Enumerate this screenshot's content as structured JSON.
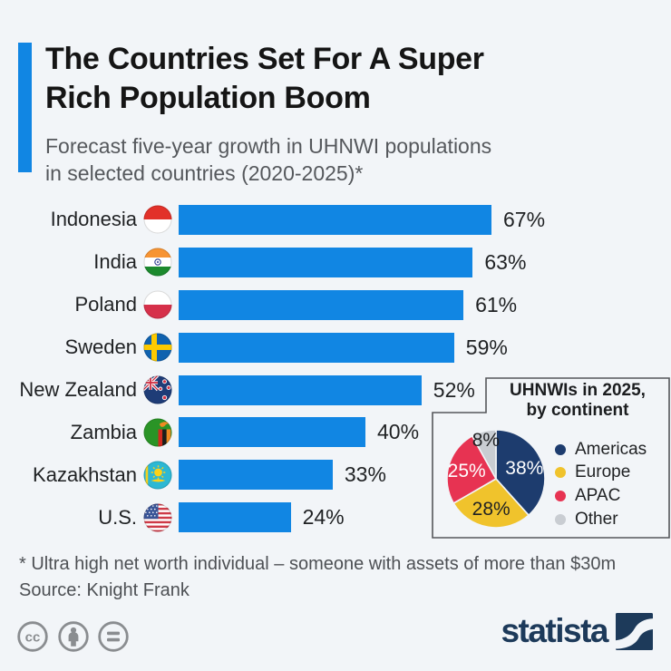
{
  "header": {
    "accent_color": "#1186e3",
    "title_lines": [
      "The Countries Set For A Super",
      "Rich Population Boom"
    ],
    "subtitle_lines": [
      "Forecast five-year growth in UHNWI populations",
      "in selected countries (2020-2025)*"
    ]
  },
  "chart_data": [
    {
      "type": "bar",
      "orientation": "horizontal",
      "title": "Forecast five-year growth in UHNWI populations in selected countries (2020-2025)",
      "categories": [
        "Indonesia",
        "India",
        "Poland",
        "Sweden",
        "New Zealand",
        "Zambia",
        "Kazakhstan",
        "U.S."
      ],
      "values": [
        67,
        63,
        61,
        59,
        52,
        40,
        33,
        24
      ],
      "value_labels": [
        "67%",
        "63%",
        "61%",
        "59%",
        "52%",
        "40%",
        "33%",
        "24%"
      ],
      "unit": "%",
      "xlim": [
        0,
        67
      ],
      "bar_color": "#1186e3",
      "grid": "off",
      "flag_icons": [
        "flag-indonesia-icon",
        "flag-india-icon",
        "flag-poland-icon",
        "flag-sweden-icon",
        "flag-new-zealand-icon",
        "flag-zambia-icon",
        "flag-kazakhstan-icon",
        "flag-us-icon"
      ]
    },
    {
      "type": "pie",
      "title": "UHNWIs in 2025, by continent",
      "title_lines": [
        "UHNWIs in 2025,",
        "by continent"
      ],
      "start_angle_deg": 0,
      "direction": "clockwise",
      "legend_position": "right",
      "slices": [
        {
          "label": "Americas",
          "value": 38,
          "display": "38%",
          "color": "#1d3c6e",
          "label_color": "#ffffff"
        },
        {
          "label": "Europe",
          "value": 28,
          "display": "28%",
          "color": "#f0c32c",
          "label_color": "#1f2123"
        },
        {
          "label": "APAC",
          "value": 25,
          "display": "25%",
          "color": "#e73352",
          "label_color": "#ffffff"
        },
        {
          "label": "Other",
          "value": 8,
          "display": "8%",
          "color": "#c9cdd2",
          "label_color": "#1f2123"
        }
      ]
    }
  ],
  "footer": {
    "footnote": "* Ultra high net worth individual – someone with assets of more than $30m",
    "source": "Source: Knight Frank",
    "license_icons": [
      "cc-icon",
      "attribution-person-icon",
      "equals-icon"
    ],
    "brand": "statista"
  }
}
